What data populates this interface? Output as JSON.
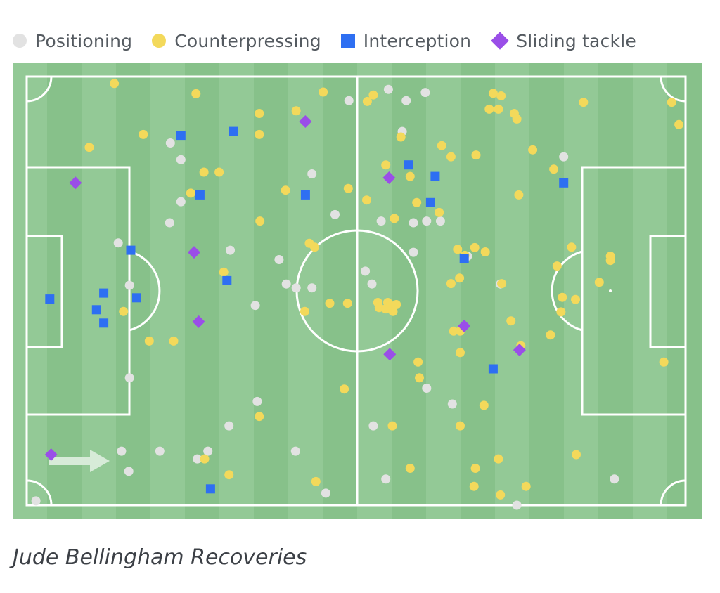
{
  "legend": {
    "positioning": {
      "label": "Positioning",
      "color": "#e2e2e2"
    },
    "counterpressing": {
      "label": "Counterpressing",
      "color": "#f3d95b"
    },
    "interception": {
      "label": "Interception",
      "color": "#2e6ff2"
    },
    "sliding_tackle": {
      "label": "Sliding tackle",
      "color": "#9a4ee8"
    }
  },
  "caption": "Jude Bellingham Recoveries",
  "colors": {
    "pitch_light": "#93c996",
    "pitch_dark": "#87c18a",
    "lines": "#ffffff",
    "arrow": "#d7ebd8"
  },
  "chart_data": {
    "type": "scatter",
    "xlim": [
      0,
      100
    ],
    "ylim": [
      0,
      100
    ],
    "grid": false,
    "legend_position": "top-left",
    "series": [
      {
        "name": "Positioning",
        "marker": "circle",
        "color": "#e2e2e2",
        "points": [
          [
            54.9,
            3
          ],
          [
            60.5,
            3.7
          ],
          [
            48.9,
            5.6
          ],
          [
            57.6,
            5.6
          ],
          [
            21.8,
            15.5
          ],
          [
            57,
            12.8
          ],
          [
            81.5,
            18.7
          ],
          [
            23.4,
            19.4
          ],
          [
            43.3,
            22.7
          ],
          [
            23.4,
            29.2
          ],
          [
            21.7,
            34.1
          ],
          [
            46.8,
            32.2
          ],
          [
            53.8,
            33.7
          ],
          [
            58.7,
            34.1
          ],
          [
            60.7,
            33.7
          ],
          [
            62.8,
            33.7
          ],
          [
            13.9,
            38.8
          ],
          [
            30.9,
            40.5
          ],
          [
            38.3,
            42.7
          ],
          [
            58.7,
            41
          ],
          [
            66.9,
            41.9
          ],
          [
            51.4,
            45.4
          ],
          [
            15.6,
            48.7
          ],
          [
            39.4,
            48.4
          ],
          [
            40.9,
            49.3
          ],
          [
            43.3,
            49.3
          ],
          [
            52.4,
            48.4
          ],
          [
            71.9,
            48.4
          ],
          [
            34.7,
            53.4
          ],
          [
            15.6,
            70.3
          ],
          [
            60.7,
            72.7
          ],
          [
            35,
            75.8
          ],
          [
            64.6,
            76.4
          ],
          [
            30.7,
            81.5
          ],
          [
            52.6,
            81.5
          ],
          [
            14.4,
            87.4
          ],
          [
            20.2,
            87.4
          ],
          [
            27.5,
            87.4
          ],
          [
            40.8,
            87.4
          ],
          [
            25.9,
            89.2
          ],
          [
            15.5,
            92.1
          ],
          [
            45.4,
            97.2
          ],
          [
            54.5,
            93.9
          ],
          [
            89.2,
            93.9
          ],
          [
            1.4,
            99
          ],
          [
            74.4,
            100
          ]
        ]
      },
      {
        "name": "Counterpressing",
        "marker": "circle",
        "color": "#f3d95b",
        "points": [
          [
            13.3,
            1.6
          ],
          [
            25.7,
            4
          ],
          [
            45,
            3.6
          ],
          [
            52.6,
            4.3
          ],
          [
            70.8,
            3.9
          ],
          [
            72,
            4.5
          ],
          [
            84.5,
            6
          ],
          [
            97.9,
            6
          ],
          [
            51.7,
            5.8
          ],
          [
            70.2,
            7.6
          ],
          [
            71.6,
            7.6
          ],
          [
            40.9,
            8
          ],
          [
            35.3,
            8.6
          ],
          [
            74,
            8.6
          ],
          [
            74.4,
            9.9
          ],
          [
            99,
            11.2
          ],
          [
            17.7,
            13.5
          ],
          [
            35.3,
            13.5
          ],
          [
            56.8,
            14.1
          ],
          [
            64.4,
            18.7
          ],
          [
            9.5,
            16.5
          ],
          [
            63,
            16.1
          ],
          [
            68.2,
            18.3
          ],
          [
            76.8,
            17.1
          ],
          [
            80,
            21.6
          ],
          [
            54.5,
            20.6
          ],
          [
            26.9,
            22.3
          ],
          [
            29.2,
            22.3
          ],
          [
            58.2,
            23.3
          ],
          [
            39.3,
            26.5
          ],
          [
            48.8,
            26.1
          ],
          [
            24.9,
            27.2
          ],
          [
            74.7,
            27.6
          ],
          [
            51.6,
            28.8
          ],
          [
            59.2,
            29.4
          ],
          [
            62.6,
            31.7
          ],
          [
            35.4,
            33.7
          ],
          [
            55.8,
            33.1
          ],
          [
            42.9,
            38.9
          ],
          [
            43.7,
            39.8
          ],
          [
            65.4,
            40.3
          ],
          [
            68,
            39.9
          ],
          [
            69.6,
            40.9
          ],
          [
            66.5,
            41.7
          ],
          [
            82.7,
            39.8
          ],
          [
            80.5,
            44.2
          ],
          [
            88.6,
            41.9
          ],
          [
            88.6,
            42.9
          ],
          [
            29.9,
            45.6
          ],
          [
            65.7,
            47
          ],
          [
            64.4,
            48.3
          ],
          [
            72.1,
            48.3
          ],
          [
            86.9,
            48
          ],
          [
            81.3,
            51.5
          ],
          [
            83.3,
            52
          ],
          [
            53.3,
            52.7
          ],
          [
            54.8,
            52.7
          ],
          [
            53.5,
            53.9
          ],
          [
            54.5,
            54.2
          ],
          [
            55.2,
            53.4
          ],
          [
            55.6,
            54.8
          ],
          [
            56.1,
            53.2
          ],
          [
            46,
            52.9
          ],
          [
            48.7,
            52.9
          ],
          [
            42.2,
            54.8
          ],
          [
            14.7,
            54.8
          ],
          [
            81.1,
            54.9
          ],
          [
            73.5,
            57
          ],
          [
            64.8,
            59.4
          ],
          [
            65.8,
            59.4
          ],
          [
            18.6,
            61.7
          ],
          [
            22.3,
            61.7
          ],
          [
            79.5,
            60.3
          ],
          [
            75,
            62.8
          ],
          [
            65.8,
            64.4
          ],
          [
            59.4,
            66.6
          ],
          [
            96.7,
            66.6
          ],
          [
            59.6,
            70.3
          ],
          [
            48.2,
            72.9
          ],
          [
            69.4,
            76.7
          ],
          [
            35.3,
            79.3
          ],
          [
            55.5,
            81.5
          ],
          [
            65.8,
            81.5
          ],
          [
            83.4,
            88.2
          ],
          [
            27,
            89.2
          ],
          [
            71.6,
            89.2
          ],
          [
            58.2,
            91.4
          ],
          [
            68.1,
            91.4
          ],
          [
            30.7,
            92.9
          ],
          [
            43.9,
            94.5
          ],
          [
            67.9,
            95.6
          ],
          [
            75.8,
            95.6
          ],
          [
            71.9,
            97.6
          ]
        ]
      },
      {
        "name": "Interception",
        "marker": "square",
        "color": "#2e6ff2",
        "points": [
          [
            23.4,
            13.7
          ],
          [
            31.4,
            12.8
          ],
          [
            57.9,
            20.6
          ],
          [
            62,
            23.3
          ],
          [
            81.5,
            24.8
          ],
          [
            26.3,
            27.6
          ],
          [
            42.3,
            27.6
          ],
          [
            61.3,
            29.4
          ],
          [
            15.8,
            40.5
          ],
          [
            66.4,
            42.4
          ],
          [
            30.4,
            47.6
          ],
          [
            11.7,
            50.5
          ],
          [
            3.5,
            51.9
          ],
          [
            16.7,
            51.6
          ],
          [
            10.6,
            54.4
          ],
          [
            11.7,
            57.5
          ],
          [
            70.8,
            68.2
          ],
          [
            27.9,
            96.2
          ]
        ]
      },
      {
        "name": "Sliding tackle",
        "marker": "diamond",
        "color": "#9a4ee8",
        "points": [
          [
            42.3,
            10.5
          ],
          [
            7.4,
            24.8
          ],
          [
            55,
            23.6
          ],
          [
            25.4,
            41
          ],
          [
            26.1,
            57.2
          ],
          [
            66.4,
            58.2
          ],
          [
            55.1,
            64.8
          ],
          [
            74.8,
            63.8
          ],
          [
            3.7,
            88.2
          ]
        ]
      }
    ]
  }
}
